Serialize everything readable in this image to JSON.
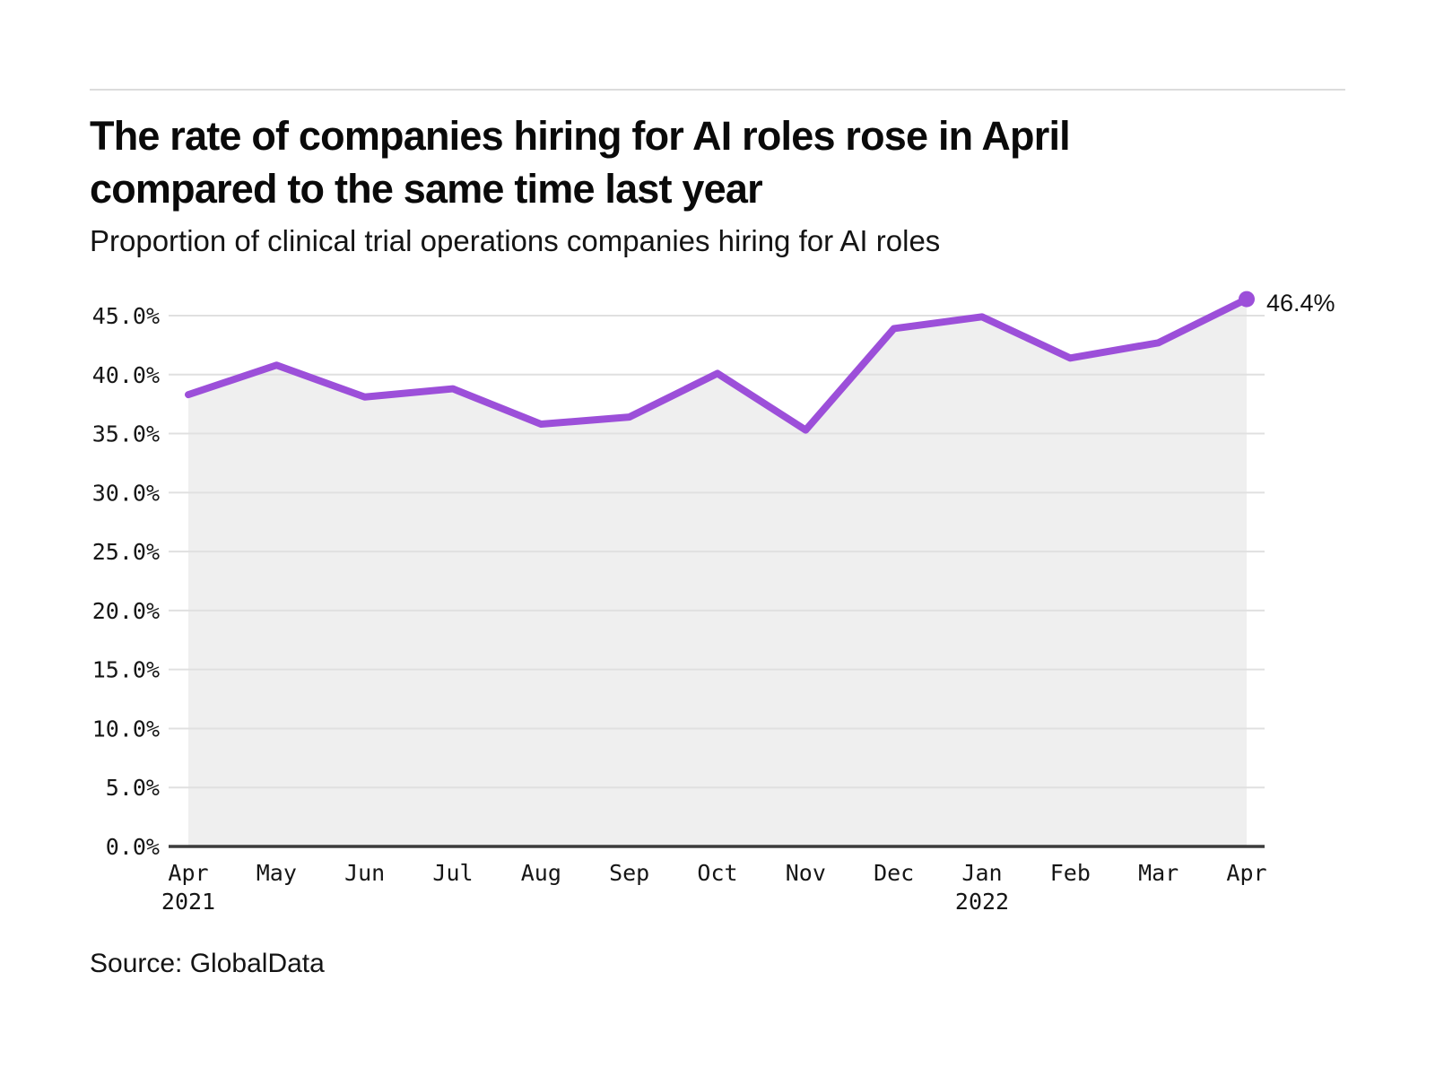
{
  "header": {
    "title_line1": "The rate of companies hiring for AI roles rose in April",
    "title_line2": "compared to the same time last year",
    "subtitle": "Proportion of clinical trial operations companies hiring for AI roles"
  },
  "source_text": "Source: GlobalData",
  "colors": {
    "line": "#9C4FD9",
    "point": "#9C4FD9",
    "area_fill": "#EFEFEF",
    "grid": "#E0E0E0",
    "axis": "#3C3C3C",
    "tick_text": "#161616",
    "annotation_text": "#111111",
    "top_rule": "#DCDCDC"
  },
  "chart_data": {
    "type": "line",
    "title": "The rate of companies hiring for AI roles rose in April compared to the same time last year",
    "subtitle": "Proportion of clinical trial operations companies hiring for AI roles",
    "categories": [
      "Apr",
      "May",
      "Jun",
      "Jul",
      "Aug",
      "Sep",
      "Oct",
      "Nov",
      "Dec",
      "Jan",
      "Feb",
      "Mar",
      "Apr"
    ],
    "category_year_breaks": [
      {
        "index": 0,
        "year": "2021"
      },
      {
        "index": 9,
        "year": "2022"
      }
    ],
    "series": [
      {
        "name": "Proportion of clinical trial operations companies hiring for AI roles",
        "values": [
          38.3,
          40.8,
          38.1,
          38.8,
          35.8,
          36.4,
          40.1,
          35.3,
          43.9,
          44.9,
          41.4,
          42.7,
          46.4
        ]
      }
    ],
    "end_point_label": "46.4%",
    "ylim": [
      0,
      45
    ],
    "ytick_step": 5,
    "ytick_labels": [
      "0.0%",
      "5.0%",
      "10.0%",
      "15.0%",
      "20.0%",
      "25.0%",
      "30.0%",
      "35.0%",
      "40.0%",
      "45.0%"
    ],
    "grid": "horizontal",
    "legend": "none",
    "area_under_line": true
  }
}
